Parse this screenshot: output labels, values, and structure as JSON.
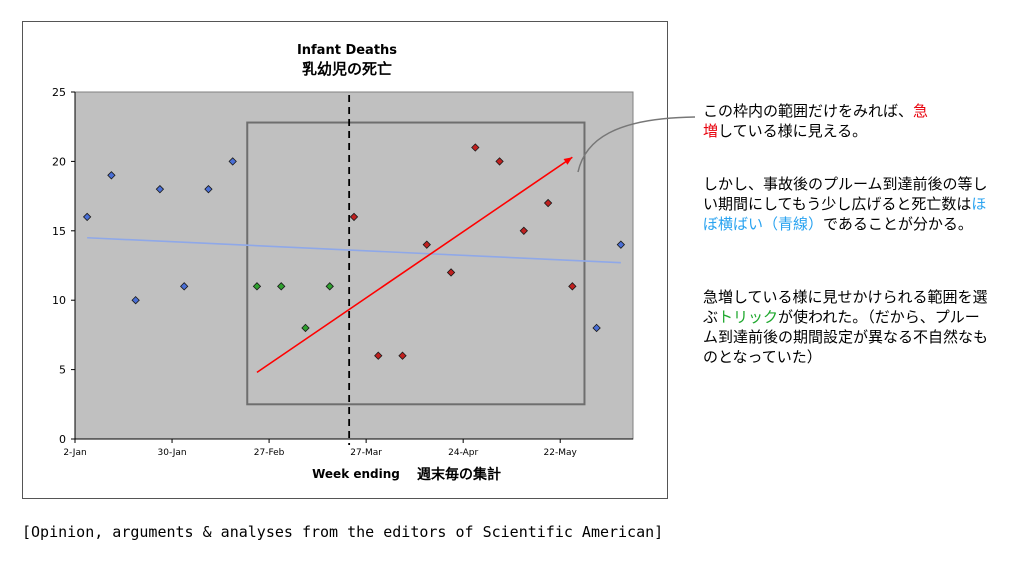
{
  "chart_data": {
    "type": "scatter",
    "title": "Infant Deaths",
    "subtitle": "乳幼児の死亡",
    "xlabel": "Week ending",
    "xlabel_jp": "週末毎の集計",
    "ylabel": "",
    "ylim": [
      0,
      25
    ],
    "yticks": [
      "0",
      "5",
      "10",
      "15",
      "20",
      "25"
    ],
    "xticks": [
      "2-Jan",
      "30-Jan",
      "27-Feb",
      "27-Mar",
      "24-Apr",
      "22-May"
    ],
    "x_unit": "week index (weekly from 2-Jan)",
    "xlim": [
      0,
      23
    ],
    "grid": false,
    "plot_background": "#c0c0c0",
    "series": [
      {
        "color": "#4a6fd6",
        "points": [
          [
            0.5,
            16
          ],
          [
            1.5,
            19
          ],
          [
            2.5,
            10
          ],
          [
            3.5,
            18
          ],
          [
            4.5,
            11
          ],
          [
            5.5,
            18
          ],
          [
            6.5,
            20
          ],
          [
            21.5,
            8
          ],
          [
            22.5,
            14
          ]
        ]
      },
      {
        "color": "#2fa02f",
        "points": [
          [
            7.5,
            11
          ],
          [
            8.5,
            11
          ],
          [
            9.5,
            8
          ],
          [
            10.5,
            11
          ]
        ]
      },
      {
        "color": "#c0201f",
        "points": [
          [
            11.5,
            16
          ],
          [
            12.5,
            6
          ],
          [
            13.5,
            6
          ],
          [
            14.5,
            14
          ],
          [
            15.5,
            12
          ],
          [
            16.5,
            21
          ],
          [
            17.5,
            20
          ],
          [
            18.5,
            15
          ],
          [
            19.5,
            17
          ],
          [
            20.5,
            11
          ]
        ]
      }
    ],
    "trend_lines": [
      {
        "color": "#8fa8e8",
        "from": [
          0.5,
          14.5
        ],
        "to": [
          22.5,
          12.7
        ]
      },
      {
        "color": "#ff0000",
        "from": [
          7.5,
          4.8
        ],
        "to": [
          20.5,
          20.3
        ],
        "arrow": true
      }
    ],
    "dashed_line_x": 11.3,
    "highlight_box": {
      "x": [
        7.1,
        21.0
      ],
      "y": [
        2.5,
        22.8
      ]
    }
  },
  "notes": {
    "p1a": "この枠内の範囲だけをみれば、",
    "p1b": "急",
    "p1c": "増",
    "p1d": "している様に見える。",
    "p2a": "しかし、事故後のプルーム到達前後の等しい期間にしてもう少し広げると死亡数は",
    "p2b": "ほぼ横ばい（青線）",
    "p2c": "であることが分かる。",
    "p3a": "急増している様に見せかけられる範囲を選ぶ",
    "p3b": "トリック",
    "p3c": "が使われた。（だから、プルーム到達前後の期間設定が異なる不自然なものとなっていた）"
  },
  "caption": "[Opinion, arguments & analyses from the editors of Scientific American]"
}
